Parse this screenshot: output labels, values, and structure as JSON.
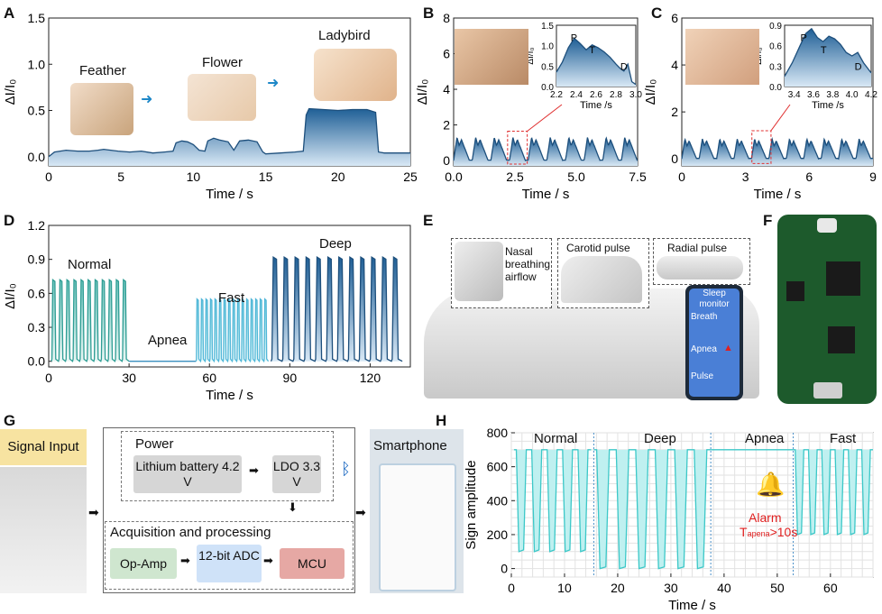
{
  "panels": {
    "A": "A",
    "B": "B",
    "C": "C",
    "D": "D",
    "E": "E",
    "F": "F",
    "G": "G",
    "H": "H"
  },
  "colors": {
    "fill_blue": "#2c6a9e",
    "fill_light": "#cfe3f3",
    "teal": "#3aa8a0",
    "cyan": "#3cc8c8",
    "alarm_red": "#e02020"
  },
  "chart_data": [
    {
      "id": "A",
      "type": "area",
      "xlabel": "Time / s",
      "ylabel": "ΔI/I₀",
      "xlim": [
        0,
        25
      ],
      "ylim": [
        -0.1,
        1.5
      ],
      "xticks": [
        0,
        5,
        10,
        15,
        20,
        25
      ],
      "yticks": [
        0.0,
        0.5,
        1.0,
        1.5
      ],
      "annotations": [
        "Feather",
        "Flower",
        "Ladybird"
      ],
      "x": [
        0,
        0.4,
        1.2,
        2.0,
        2.8,
        3.4,
        3.8,
        4.8,
        5.6,
        6.4,
        7.2,
        8.0,
        8.6,
        8.8,
        9.2,
        9.6,
        10.0,
        10.4,
        10.8,
        11.0,
        11.4,
        11.8,
        12.4,
        12.8,
        13.2,
        13.8,
        14.4,
        14.8,
        15.0,
        16.0,
        17.0,
        17.6,
        17.8,
        18.0,
        19.0,
        20.0,
        21.0,
        22.0,
        22.6,
        22.8,
        23.2,
        24.0,
        25.0
      ],
      "y": [
        0.0,
        0.05,
        0.07,
        0.06,
        0.06,
        0.07,
        0.08,
        0.06,
        0.05,
        0.06,
        0.04,
        0.05,
        0.06,
        0.15,
        0.17,
        0.16,
        0.13,
        0.07,
        0.06,
        0.17,
        0.2,
        0.18,
        0.16,
        0.07,
        0.17,
        0.18,
        0.16,
        0.05,
        0.03,
        0.04,
        0.05,
        0.06,
        0.45,
        0.52,
        0.51,
        0.5,
        0.51,
        0.51,
        0.48,
        0.05,
        0.04,
        0.04,
        0.04
      ]
    },
    {
      "id": "B",
      "type": "line",
      "xlabel": "Time / s",
      "ylabel": "ΔI/I₀",
      "xlim": [
        0,
        7.5
      ],
      "ylim": [
        -0.3,
        8
      ],
      "xticks": [
        0.0,
        2.5,
        5.0,
        7.5
      ],
      "yticks": [
        0,
        2,
        4,
        6,
        8
      ],
      "period": 0.76,
      "peak": 1.3,
      "inset": {
        "xlabel": "Time /s",
        "ylabel": "ΔI/I₀",
        "xlim": [
          2.2,
          3.0
        ],
        "ylim": [
          0,
          1.5
        ],
        "xticks": [
          2.2,
          2.4,
          2.6,
          2.8,
          3.0
        ],
        "yticks": [
          0.0,
          0.5,
          1.0,
          1.5
        ],
        "labels": [
          "P",
          "T",
          "D"
        ],
        "x": [
          2.2,
          2.26,
          2.32,
          2.38,
          2.44,
          2.5,
          2.56,
          2.62,
          2.68,
          2.74,
          2.8,
          2.84,
          2.88,
          2.92,
          2.96,
          3.0
        ],
        "y": [
          0.35,
          0.6,
          0.95,
          1.18,
          1.05,
          0.9,
          1.02,
          0.95,
          0.85,
          0.72,
          0.55,
          0.45,
          0.38,
          0.55,
          0.12,
          0.05
        ]
      }
    },
    {
      "id": "C",
      "type": "line",
      "xlabel": "Time / s",
      "ylabel": "ΔI/I₀",
      "xlim": [
        0,
        9
      ],
      "ylim": [
        -0.3,
        6
      ],
      "xticks": [
        0,
        3,
        6,
        9
      ],
      "yticks": [
        0,
        2,
        4,
        6
      ],
      "period": 0.82,
      "peak": 0.85,
      "inset": {
        "xlabel": "Time /s",
        "ylabel": "ΔI/I₀",
        "xlim": [
          3.3,
          4.2
        ],
        "ylim": [
          0,
          0.9
        ],
        "xticks": [
          3.4,
          3.6,
          3.8,
          4.0,
          4.2
        ],
        "yticks": [
          0.0,
          0.3,
          0.6,
          0.9
        ],
        "labels": [
          "P",
          "T",
          "D"
        ],
        "x": [
          3.3,
          3.38,
          3.46,
          3.52,
          3.58,
          3.64,
          3.7,
          3.76,
          3.82,
          3.88,
          3.94,
          4.0,
          4.06,
          4.12,
          4.2
        ],
        "y": [
          0.15,
          0.35,
          0.6,
          0.78,
          0.85,
          0.72,
          0.66,
          0.74,
          0.7,
          0.62,
          0.5,
          0.45,
          0.5,
          0.35,
          0.2
        ]
      }
    },
    {
      "id": "D",
      "type": "area",
      "xlabel": "Time / s",
      "ylabel": "ΔI/I₀",
      "xlim": [
        0,
        135
      ],
      "ylim": [
        -0.05,
        1.2
      ],
      "xticks": [
        0,
        30,
        60,
        90,
        120
      ],
      "yticks": [
        0.0,
        0.3,
        0.6,
        0.9,
        1.2
      ],
      "annotations": [
        "Normal",
        "Apnea",
        "Fast",
        "Deep"
      ],
      "segments": [
        {
          "name": "Normal",
          "start": 1,
          "end": 30,
          "count": 11,
          "peak": 0.72
        },
        {
          "name": "Apnea",
          "start": 30,
          "end": 55,
          "count": 0,
          "peak": 0.0
        },
        {
          "name": "Fast",
          "start": 55,
          "end": 82,
          "count": 16,
          "peak": 0.55
        },
        {
          "name": "Deep",
          "start": 83,
          "end": 132,
          "count": 12,
          "peak": 0.92
        }
      ]
    },
    {
      "id": "H",
      "type": "area",
      "xlabel": "Time / s",
      "ylabel": "Sign amplitude",
      "xlim": [
        0,
        68
      ],
      "ylim": [
        -50,
        800
      ],
      "xticks": [
        0,
        10,
        20,
        30,
        40,
        50,
        60
      ],
      "yticks": [
        0,
        200,
        400,
        600,
        800
      ],
      "annotations": [
        "Normal",
        "Deep",
        "Apnea",
        "Fast"
      ],
      "alarm": "Alarm",
      "alarm_expr_prefix": "T",
      "alarm_expr_sub": "apena",
      "alarm_expr_suffix": ">10s",
      "segments": [
        {
          "name": "Normal",
          "start": 0.5,
          "end": 15,
          "count": 5,
          "min": 100
        },
        {
          "name": "Deep",
          "start": 15.5,
          "end": 37.5,
          "count": 6,
          "min": 0
        },
        {
          "name": "Apnea",
          "start": 37.5,
          "end": 53,
          "count": 0,
          "min": 700
        },
        {
          "name": "Fast",
          "start": 53,
          "end": 68,
          "count": 6,
          "min": 200
        }
      ]
    }
  ],
  "panel_E": {
    "labels": [
      "Nasal breathing airflow",
      "Carotid pulse",
      "Radial pulse"
    ],
    "phone": {
      "title": "Sleep monitor",
      "rows": [
        "Breath",
        "Apnea",
        "Pulse"
      ]
    }
  },
  "panel_G": {
    "signal_input": "Signal Input",
    "power": "Power",
    "battery": "Lithium battery 4.2 V",
    "ldo": "LDO 3.3 V",
    "acq": "Acquisition and processing",
    "opamp": "Op-Amp",
    "adc": "12-bit ADC",
    "mcu": "MCU",
    "smartphone": "Smartphone"
  }
}
